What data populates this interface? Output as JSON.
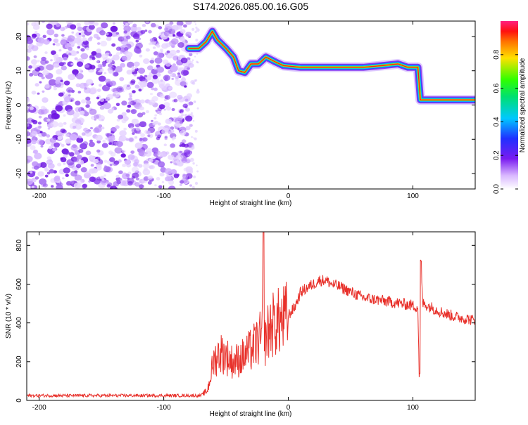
{
  "title": "S174.2026.085.00.16.G05",
  "chart_data": [
    {
      "type": "heatmap",
      "xlabel": "Height of straight line (km)",
      "ylabel": "Frequency (Hz)",
      "xlim": [
        -210,
        150
      ],
      "ylim": [
        -24.5,
        24.5
      ],
      "xticks": [
        -200,
        -100,
        0,
        100
      ],
      "yticks": [
        -20,
        -10,
        0,
        10,
        20
      ],
      "xtick_labels": [
        "-200",
        "-100",
        "0",
        "100"
      ],
      "ytick_labels": [
        "-20",
        "-10",
        "0",
        "10",
        "20"
      ],
      "noise_region_x": [
        -210,
        -78
      ],
      "ridge": [
        {
          "x": -80,
          "y": 16.5
        },
        {
          "x": -72,
          "y": 16.5
        },
        {
          "x": -66,
          "y": 18.5
        },
        {
          "x": -61,
          "y": 21.5
        },
        {
          "x": -57,
          "y": 19
        },
        {
          "x": -50,
          "y": 16.5
        },
        {
          "x": -44,
          "y": 14
        },
        {
          "x": -40,
          "y": 10
        },
        {
          "x": -35,
          "y": 9.5
        },
        {
          "x": -30,
          "y": 12
        },
        {
          "x": -24,
          "y": 12
        },
        {
          "x": -18,
          "y": 14
        },
        {
          "x": -10,
          "y": 12.5
        },
        {
          "x": -4,
          "y": 11.5
        },
        {
          "x": 10,
          "y": 11
        },
        {
          "x": 40,
          "y": 11
        },
        {
          "x": 60,
          "y": 11
        },
        {
          "x": 75,
          "y": 11.5
        },
        {
          "x": 88,
          "y": 12
        },
        {
          "x": 96,
          "y": 11
        },
        {
          "x": 104,
          "y": 11
        },
        {
          "x": 106,
          "y": 1.5
        },
        {
          "x": 150,
          "y": 1.5
        }
      ],
      "colorbar": {
        "label": "Normalized spectral amplitude",
        "range": [
          0,
          1
        ],
        "ticks": [
          0,
          0.2,
          0.4,
          0.6,
          0.8
        ],
        "tick_labels": [
          "0.0",
          "0.2",
          "0.4",
          "0.6",
          "0.8"
        ]
      }
    },
    {
      "type": "line",
      "xlabel": "Height of straight line (km)",
      "ylabel": "SNR (10 * v/v)",
      "xlim": [
        -210,
        150
      ],
      "ylim": [
        0,
        870
      ],
      "xticks": [
        -200,
        -100,
        0,
        100
      ],
      "yticks": [
        0,
        200,
        400,
        600,
        800
      ],
      "xtick_labels": [
        "-200",
        "-100",
        "0",
        "100"
      ],
      "ytick_labels": [
        "0",
        "200",
        "400",
        "600",
        "800"
      ],
      "color": "#e8302a",
      "series": [
        {
          "name": "SNR",
          "x": [
            -210,
            -180,
            -150,
            -120,
            -90,
            -70,
            -65,
            -60,
            -55,
            -50,
            -45,
            -40,
            -35,
            -30,
            -25,
            -21,
            -20,
            -19,
            -15,
            -10,
            -5,
            0,
            5,
            10,
            15,
            20,
            25,
            30,
            35,
            40,
            50,
            60,
            70,
            80,
            90,
            100,
            104,
            105,
            106,
            108,
            115,
            125,
            135,
            145,
            150
          ],
          "y": [
            25,
            25,
            25,
            25,
            25,
            25,
            50,
            200,
            250,
            230,
            200,
            210,
            230,
            260,
            300,
            330,
            870,
            300,
            380,
            400,
            410,
            440,
            480,
            560,
            580,
            600,
            620,
            620,
            600,
            590,
            560,
            530,
            520,
            510,
            500,
            490,
            480,
            140,
            720,
            500,
            480,
            450,
            430,
            420,
            410
          ]
        }
      ]
    }
  ]
}
